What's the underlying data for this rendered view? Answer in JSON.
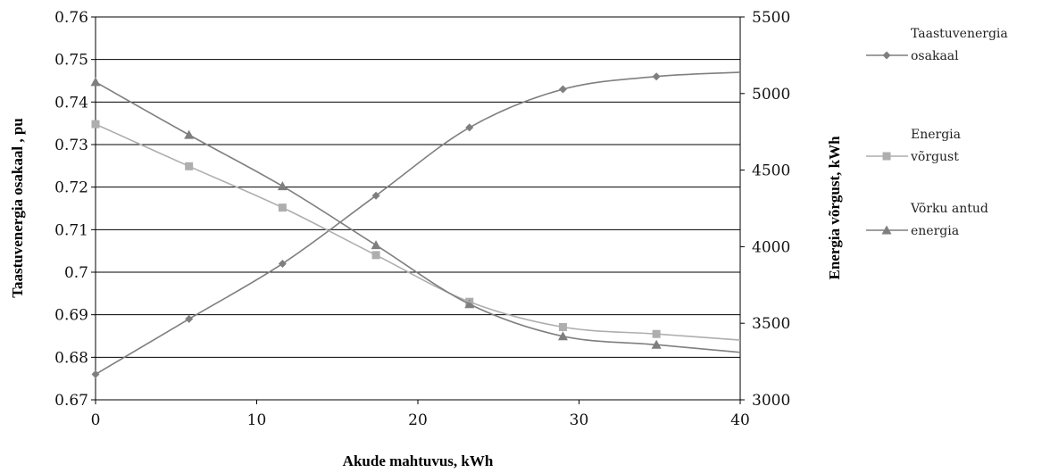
{
  "chart_data": {
    "type": "line",
    "xlabel": "Akude mahtuvus,  kWh",
    "ylabel_left": "Taastuvenergia  osakaal , pu",
    "ylabel_right": "Energia võrgust, kWh",
    "xlim": [
      0,
      40
    ],
    "ylim_left": [
      0.67,
      0.76
    ],
    "ylim_right": [
      3000,
      5500
    ],
    "x_ticks": [
      "0",
      "10",
      "20",
      "30",
      "40"
    ],
    "y_ticks_left": [
      "0.67",
      "0.68",
      "0.69",
      "0.7",
      "0.71",
      "0.72",
      "0.73",
      "0.74",
      "0.75",
      "0.76"
    ],
    "y_ticks_right": [
      "3000",
      "3500",
      "4000",
      "4500",
      "5000",
      "5500"
    ],
    "grid": "horizontal",
    "legend_position": "right",
    "series": [
      {
        "name_lines": [
          "Taastuvenergia",
          "osakaal"
        ],
        "axis": "left",
        "marker": "diamond",
        "color": "#7f7f7f",
        "x": [
          0,
          5.8,
          11.6,
          17.4,
          23.2,
          29,
          34.8
        ],
        "y": [
          0.676,
          0.689,
          0.702,
          0.718,
          0.734,
          0.743,
          0.746
        ],
        "x_end": 40,
        "y_end": 0.747
      },
      {
        "name_lines": [
          "Energia",
          "võrgust"
        ],
        "axis": "right",
        "marker": "square",
        "color": "#aeaeae",
        "x": [
          0,
          5.8,
          11.6,
          17.4,
          23.2,
          29,
          34.8
        ],
        "y": [
          4800,
          4525,
          4255,
          3945,
          3640,
          3475,
          3430
        ],
        "x_end": 40,
        "y_end": 3390
      },
      {
        "name_lines": [
          "Võrku antud",
          "energia"
        ],
        "axis": "right",
        "marker": "triangle",
        "color": "#7f7f7f",
        "x": [
          0,
          5.8,
          11.6,
          17.4,
          23.2,
          29,
          34.8
        ],
        "y": [
          5075,
          4730,
          4395,
          4010,
          3625,
          3415,
          3360
        ],
        "x_end": 40,
        "y_end": 3310
      }
    ]
  }
}
